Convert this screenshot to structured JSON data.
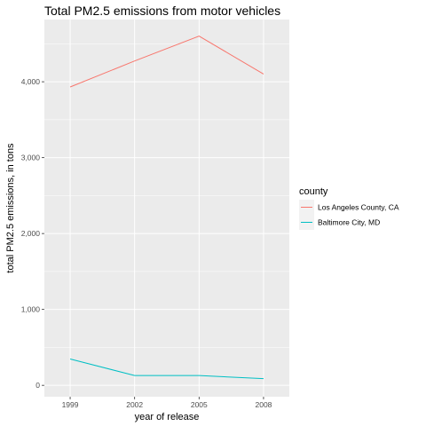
{
  "chart_data": {
    "type": "line",
    "title": "Total PM2.5 emissions from motor vehicles",
    "xlabel": "year of release",
    "ylabel": "total PM2.5 emissions, in tons",
    "x": [
      1999,
      2002,
      2005,
      2008
    ],
    "x_tick_labels": [
      "1999",
      "2002",
      "2005",
      "2008"
    ],
    "xlim": [
      1997.8,
      2009.2
    ],
    "y_ticks": [
      0,
      1000,
      2000,
      3000,
      4000
    ],
    "y_tick_labels": [
      "0",
      "1,000",
      "2,000",
      "3,000",
      "4,000"
    ],
    "ylim": [
      -150,
      4820
    ],
    "grid": true,
    "legend": {
      "title": "county",
      "position": "right"
    },
    "series": [
      {
        "name": "Los Angeles County, CA",
        "color": "#F8766D",
        "values": [
          3931,
          4274,
          4602,
          4101
        ]
      },
      {
        "name": "Baltimore City, MD",
        "color": "#00BFC4",
        "values": [
          347,
          129,
          129,
          88
        ]
      }
    ]
  }
}
